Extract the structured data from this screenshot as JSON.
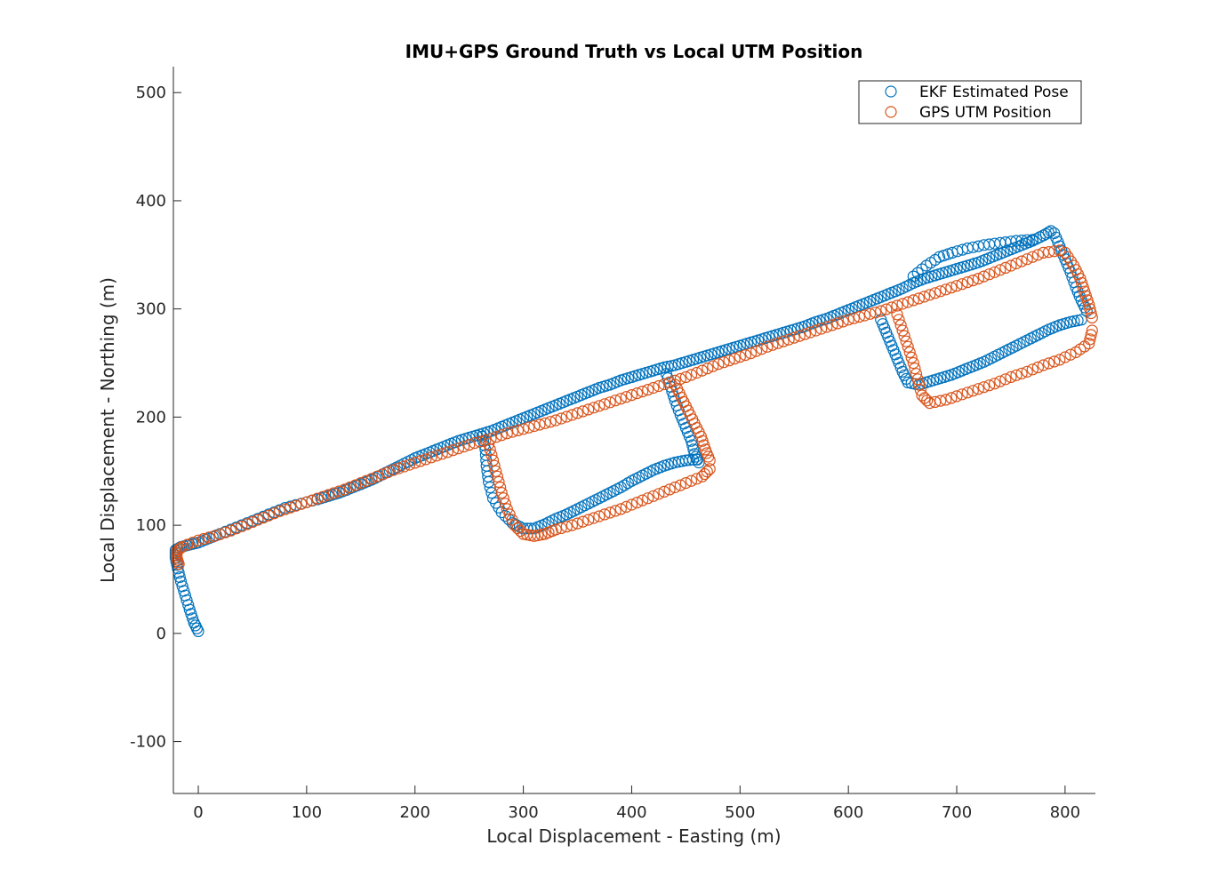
{
  "chart_data": {
    "type": "scatter",
    "title": "IMU+GPS Ground Truth vs Local UTM Position",
    "xlabel": "Local Displacement - Easting (m)",
    "ylabel": "Local Displacement - Northing (m)",
    "xlim": [
      -23,
      828
    ],
    "ylim": [
      -148,
      524
    ],
    "xticks": [
      0,
      100,
      200,
      300,
      400,
      500,
      600,
      700,
      800
    ],
    "yticks": [
      -100,
      0,
      100,
      200,
      300,
      400,
      500
    ],
    "xtick_labels": [
      "0",
      "100",
      "200",
      "300",
      "400",
      "500",
      "600",
      "700",
      "800"
    ],
    "ytick_labels": [
      "-100",
      "0",
      "100",
      "200",
      "300",
      "400",
      "500"
    ],
    "grid": false,
    "legend_position": "top-right",
    "series": [
      {
        "name": "EKF Estimated Pose",
        "color": "#0072BD",
        "marker": "circle-open",
        "points": [
          [
            0,
            2
          ],
          [
            -4,
            10
          ],
          [
            -8,
            22
          ],
          [
            -12,
            35
          ],
          [
            -16,
            48
          ],
          [
            -19,
            60
          ],
          [
            -21,
            70
          ],
          [
            -21,
            77
          ],
          [
            -16,
            80
          ],
          [
            -8,
            82
          ],
          [
            0,
            84
          ],
          [
            10,
            88
          ],
          [
            20,
            92
          ],
          [
            35,
            98
          ],
          [
            50,
            104
          ],
          [
            65,
            110
          ],
          [
            80,
            116
          ],
          [
            95,
            120
          ],
          [
            110,
            124
          ],
          [
            120,
            127
          ],
          [
            130,
            130
          ],
          [
            140,
            134
          ],
          [
            150,
            138
          ],
          [
            160,
            142
          ],
          [
            170,
            147
          ],
          [
            180,
            152
          ],
          [
            190,
            157
          ],
          [
            200,
            162
          ],
          [
            210,
            166
          ],
          [
            220,
            170
          ],
          [
            230,
            174
          ],
          [
            240,
            178
          ],
          [
            250,
            181
          ],
          [
            260,
            184
          ],
          [
            270,
            187
          ],
          [
            280,
            191
          ],
          [
            290,
            195
          ],
          [
            300,
            199
          ],
          [
            310,
            203
          ],
          [
            320,
            207
          ],
          [
            330,
            211
          ],
          [
            340,
            215
          ],
          [
            350,
            219
          ],
          [
            360,
            223
          ],
          [
            370,
            227
          ],
          [
            380,
            230
          ],
          [
            390,
            234
          ],
          [
            400,
            237
          ],
          [
            410,
            240
          ],
          [
            420,
            243
          ],
          [
            430,
            246
          ],
          [
            440,
            248
          ],
          [
            450,
            251
          ],
          [
            460,
            254
          ],
          [
            470,
            257
          ],
          [
            480,
            260
          ],
          [
            490,
            263
          ],
          [
            500,
            266
          ],
          [
            510,
            269
          ],
          [
            520,
            272
          ],
          [
            530,
            275
          ],
          [
            540,
            278
          ],
          [
            550,
            281
          ],
          [
            560,
            284
          ],
          [
            570,
            288
          ],
          [
            580,
            291
          ],
          [
            590,
            295
          ],
          [
            600,
            299
          ],
          [
            610,
            303
          ],
          [
            620,
            307
          ],
          [
            630,
            311
          ],
          [
            640,
            315
          ],
          [
            650,
            319
          ],
          [
            660,
            324
          ],
          [
            670,
            328
          ],
          [
            680,
            331
          ],
          [
            690,
            334
          ],
          [
            700,
            337
          ],
          [
            710,
            340
          ],
          [
            720,
            343
          ],
          [
            730,
            347
          ],
          [
            740,
            351
          ],
          [
            750,
            355
          ],
          [
            760,
            359
          ],
          [
            770,
            363
          ],
          [
            780,
            368
          ],
          [
            787,
            372
          ],
          [
            262,
            182
          ],
          [
            265,
            170
          ],
          [
            266,
            155
          ],
          [
            268,
            140
          ],
          [
            272,
            125
          ],
          [
            280,
            112
          ],
          [
            290,
            102
          ],
          [
            300,
            97
          ],
          [
            310,
            97
          ],
          [
            320,
            101
          ],
          [
            330,
            106
          ],
          [
            340,
            110
          ],
          [
            350,
            115
          ],
          [
            360,
            120
          ],
          [
            370,
            125
          ],
          [
            380,
            130
          ],
          [
            390,
            135
          ],
          [
            400,
            141
          ],
          [
            410,
            146
          ],
          [
            420,
            151
          ],
          [
            430,
            155
          ],
          [
            440,
            158
          ],
          [
            450,
            160
          ],
          [
            460,
            161
          ],
          [
            432,
            240
          ],
          [
            436,
            228
          ],
          [
            440,
            215
          ],
          [
            445,
            202
          ],
          [
            450,
            190
          ],
          [
            455,
            178
          ],
          [
            458,
            166
          ],
          [
            462,
            158
          ],
          [
            630,
            290
          ],
          [
            635,
            278
          ],
          [
            640,
            266
          ],
          [
            645,
            254
          ],
          [
            650,
            242
          ],
          [
            655,
            232
          ],
          [
            665,
            230
          ],
          [
            675,
            233
          ],
          [
            685,
            236
          ],
          [
            695,
            239
          ],
          [
            705,
            243
          ],
          [
            715,
            247
          ],
          [
            725,
            251
          ],
          [
            735,
            256
          ],
          [
            745,
            261
          ],
          [
            755,
            266
          ],
          [
            765,
            271
          ],
          [
            775,
            276
          ],
          [
            785,
            281
          ],
          [
            795,
            285
          ],
          [
            805,
            288
          ],
          [
            815,
            290
          ],
          [
            790,
            370
          ],
          [
            795,
            358
          ],
          [
            800,
            346
          ],
          [
            805,
            334
          ],
          [
            810,
            320
          ],
          [
            815,
            308
          ],
          [
            820,
            298
          ],
          [
            660,
            330
          ],
          [
            672,
            340
          ],
          [
            684,
            348
          ],
          [
            696,
            352
          ],
          [
            710,
            356
          ],
          [
            725,
            359
          ],
          [
            740,
            361
          ],
          [
            755,
            363
          ],
          [
            770,
            364
          ]
        ]
      },
      {
        "name": "GPS UTM Position",
        "color": "#D95319",
        "marker": "circle-open",
        "points": [
          [
            -18,
            64
          ],
          [
            -20,
            70
          ],
          [
            -20,
            76
          ],
          [
            -15,
            80
          ],
          [
            0,
            86
          ],
          [
            15,
            90
          ],
          [
            30,
            95
          ],
          [
            45,
            101
          ],
          [
            60,
            107
          ],
          [
            75,
            113
          ],
          [
            90,
            118
          ],
          [
            105,
            123
          ],
          [
            120,
            128
          ],
          [
            135,
            133
          ],
          [
            150,
            139
          ],
          [
            165,
            145
          ],
          [
            180,
            151
          ],
          [
            195,
            156
          ],
          [
            210,
            161
          ],
          [
            225,
            166
          ],
          [
            240,
            171
          ],
          [
            255,
            176
          ],
          [
            270,
            180
          ],
          [
            285,
            185
          ],
          [
            300,
            189
          ],
          [
            315,
            193
          ],
          [
            330,
            197
          ],
          [
            345,
            202
          ],
          [
            360,
            207
          ],
          [
            375,
            212
          ],
          [
            390,
            217
          ],
          [
            405,
            222
          ],
          [
            420,
            227
          ],
          [
            435,
            232
          ],
          [
            450,
            237
          ],
          [
            465,
            243
          ],
          [
            480,
            249
          ],
          [
            495,
            254
          ],
          [
            510,
            259
          ],
          [
            525,
            265
          ],
          [
            540,
            270
          ],
          [
            555,
            275
          ],
          [
            570,
            280
          ],
          [
            585,
            285
          ],
          [
            600,
            290
          ],
          [
            615,
            294
          ],
          [
            630,
            298
          ],
          [
            645,
            303
          ],
          [
            660,
            308
          ],
          [
            675,
            313
          ],
          [
            690,
            318
          ],
          [
            705,
            323
          ],
          [
            720,
            328
          ],
          [
            735,
            334
          ],
          [
            750,
            340
          ],
          [
            765,
            346
          ],
          [
            780,
            352
          ],
          [
            795,
            354
          ],
          [
            268,
            175
          ],
          [
            272,
            160
          ],
          [
            276,
            145
          ],
          [
            280,
            130
          ],
          [
            285,
            115
          ],
          [
            292,
            100
          ],
          [
            300,
            92
          ],
          [
            310,
            90
          ],
          [
            320,
            92
          ],
          [
            330,
            96
          ],
          [
            345,
            100
          ],
          [
            360,
            105
          ],
          [
            375,
            110
          ],
          [
            390,
            115
          ],
          [
            405,
            121
          ],
          [
            420,
            127
          ],
          [
            435,
            133
          ],
          [
            450,
            139
          ],
          [
            465,
            145
          ],
          [
            472,
            152
          ],
          [
            440,
            230
          ],
          [
            446,
            218
          ],
          [
            452,
            206
          ],
          [
            458,
            194
          ],
          [
            464,
            182
          ],
          [
            468,
            170
          ],
          [
            472,
            160
          ],
          [
            645,
            295
          ],
          [
            650,
            280
          ],
          [
            655,
            265
          ],
          [
            660,
            250
          ],
          [
            664,
            235
          ],
          [
            668,
            220
          ],
          [
            675,
            213
          ],
          [
            690,
            216
          ],
          [
            705,
            221
          ],
          [
            720,
            226
          ],
          [
            735,
            231
          ],
          [
            750,
            237
          ],
          [
            765,
            242
          ],
          [
            780,
            248
          ],
          [
            795,
            253
          ],
          [
            810,
            260
          ],
          [
            822,
            268
          ],
          [
            825,
            280
          ],
          [
            800,
            352
          ],
          [
            808,
            340
          ],
          [
            814,
            328
          ],
          [
            818,
            316
          ],
          [
            822,
            304
          ],
          [
            825,
            292
          ]
        ]
      }
    ]
  }
}
